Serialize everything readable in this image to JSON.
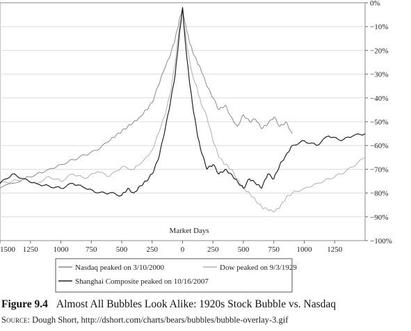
{
  "caption": {
    "figure_number": "Figure 9.4",
    "title": "Almost All Bubbles Look Alike: 1920s Stock Bubble vs. Nasdaq",
    "source_prefix": "Source:",
    "source_text": "Dough Short, http://dshort.com/charts/bears/bubbles/bubble-overlay-3.gif"
  },
  "chart_data": {
    "type": "line",
    "title": "",
    "xlabel": "Market Days",
    "ylabel": "",
    "xlim": [
      -1500,
      1500
    ],
    "ylim": [
      -100,
      0
    ],
    "grid": true,
    "legend_position": "bottom",
    "x_ticks": [
      -1500,
      -1250,
      -1000,
      -750,
      -500,
      -250,
      0,
      250,
      500,
      750,
      1000,
      1250
    ],
    "x_tick_labels": [
      "1500",
      "1250",
      "1000",
      "750",
      "500",
      "250",
      "0",
      "250",
      "500",
      "750",
      "1000",
      "1250"
    ],
    "y_ticks": [
      0,
      -10,
      -20,
      -30,
      -40,
      -50,
      -60,
      -70,
      -80,
      -90,
      -100
    ],
    "y_tick_labels": [
      "0%",
      "−10%",
      "−20%",
      "−30%",
      "−40%",
      "−50%",
      "−60%",
      "−70%",
      "−80%",
      "−90%",
      "−100%"
    ],
    "legend_rows": [
      [
        "Nasdaq peaked on 3/10/2000",
        "Dow peaked on 9/3/1929"
      ],
      [
        "Shanghai Composite peaked on 10/16/2007"
      ]
    ],
    "series": [
      {
        "name": "Nasdaq peaked on 3/10/2000",
        "color": "#8a8a8a",
        "width": 1.0,
        "x": [
          -1500,
          -1300,
          -1200,
          -1100,
          -1000,
          -900,
          -800,
          -700,
          -600,
          -550,
          -500,
          -450,
          -400,
          -350,
          -300,
          -250,
          -200,
          -150,
          -100,
          -60,
          -30,
          0,
          20,
          50,
          80,
          120,
          150,
          200,
          250,
          300,
          350,
          400,
          450,
          500,
          550,
          600,
          650,
          700,
          750,
          800,
          850,
          900
        ],
        "y": [
          -78,
          -74,
          -72,
          -70,
          -68,
          -66,
          -64,
          -62,
          -58,
          -56,
          -54,
          -52,
          -50,
          -48,
          -45,
          -42,
          -35,
          -28,
          -22,
          -15,
          -8,
          -2,
          -8,
          -15,
          -20,
          -25,
          -28,
          -35,
          -40,
          -45,
          -43,
          -48,
          -52,
          -47,
          -50,
          -49,
          -53,
          -51,
          -48,
          -52,
          -50,
          -55
        ]
      },
      {
        "name": "Dow peaked on 9/3/1929",
        "color": "#b0b0b0",
        "width": 1.0,
        "x": [
          -1500,
          -1400,
          -1300,
          -1200,
          -1100,
          -1000,
          -900,
          -800,
          -700,
          -600,
          -500,
          -400,
          -300,
          -250,
          -200,
          -150,
          -100,
          -60,
          -30,
          0,
          20,
          50,
          80,
          120,
          150,
          200,
          250,
          300,
          350,
          400,
          450,
          500,
          550,
          600,
          650,
          700,
          750,
          800,
          850,
          900,
          1000,
          1100,
          1200,
          1300,
          1400,
          1500
        ],
        "y": [
          -76,
          -75,
          -74,
          -76,
          -73,
          -75,
          -72,
          -74,
          -71,
          -73,
          -69,
          -70,
          -65,
          -62,
          -55,
          -48,
          -38,
          -25,
          -12,
          -3,
          -12,
          -22,
          -30,
          -36,
          -42,
          -48,
          -58,
          -65,
          -68,
          -70,
          -74,
          -78,
          -80,
          -83,
          -86,
          -87,
          -88,
          -86,
          -82,
          -80,
          -78,
          -76,
          -74,
          -72,
          -69,
          -65
        ]
      },
      {
        "name": "Shanghai Composite peaked on 10/16/2007",
        "color": "#222222",
        "width": 1.2,
        "x": [
          -1500,
          -1400,
          -1300,
          -1200,
          -1100,
          -1000,
          -900,
          -800,
          -700,
          -600,
          -500,
          -450,
          -400,
          -350,
          -300,
          -250,
          -200,
          -150,
          -100,
          -60,
          -30,
          0,
          20,
          50,
          80,
          120,
          150,
          200,
          250,
          300,
          350,
          400,
          450,
          500,
          550,
          600,
          650,
          700,
          750,
          800,
          850,
          900,
          1000,
          1100,
          1200,
          1300,
          1400,
          1500
        ],
        "y": [
          -76,
          -72,
          -74,
          -76,
          -77,
          -78,
          -76,
          -78,
          -80,
          -80,
          -81,
          -78,
          -80,
          -77,
          -75,
          -72,
          -66,
          -55,
          -42,
          -30,
          -15,
          -2,
          -15,
          -30,
          -42,
          -55,
          -62,
          -70,
          -68,
          -72,
          -70,
          -72,
          -75,
          -78,
          -74,
          -76,
          -78,
          -72,
          -74,
          -68,
          -64,
          -60,
          -58,
          -60,
          -56,
          -58,
          -56,
          -55
        ]
      }
    ]
  }
}
